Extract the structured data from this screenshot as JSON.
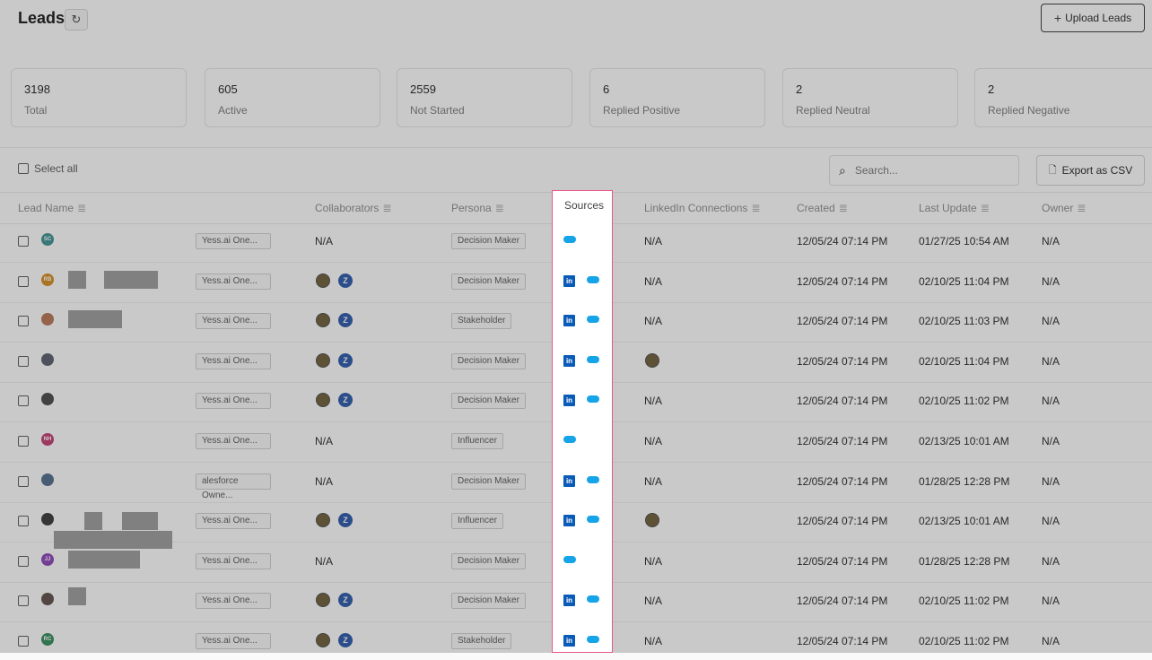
{
  "header": {
    "title": "Leads",
    "refresh_icon": "refresh-icon",
    "upload_label": "Upload Leads"
  },
  "stats": [
    {
      "num": "3198",
      "label": "Total"
    },
    {
      "num": "605",
      "label": "Active"
    },
    {
      "num": "2559",
      "label": "Not Started"
    },
    {
      "num": "6",
      "label": "Replied Positive"
    },
    {
      "num": "2",
      "label": "Replied Neutral"
    },
    {
      "num": "2",
      "label": "Replied Negative"
    }
  ],
  "toolbar": {
    "select_all": "Select all",
    "search_placeholder": "Search...",
    "export_label": "Export as CSV"
  },
  "columns": {
    "lead_name": "Lead Name",
    "collaborators": "Collaborators",
    "persona": "Persona",
    "sources": "Sources",
    "linkedin": "LinkedIn Connections",
    "created": "Created",
    "last_update": "Last Update",
    "owner": "Owner"
  },
  "rows": [
    {
      "initials": "SC",
      "avatar_color": "#3a8f8f",
      "list": "Yess.ai One...",
      "collab": "N/A",
      "persona": "Decision Maker",
      "linkedin": "N/A",
      "created": "12/05/24 07:14 PM",
      "updated": "01/27/25 10:54 AM",
      "owner": "N/A"
    },
    {
      "initials": "RB",
      "avatar_color": "#d48a1c",
      "list": "Yess.ai One...",
      "collab": "",
      "persona": "Decision Maker",
      "linkedin": "N/A",
      "created": "12/05/24 07:14 PM",
      "updated": "02/10/25 11:04 PM",
      "owner": "N/A"
    },
    {
      "initials": "",
      "avatar_color": "#b6724e",
      "list": "Yess.ai One...",
      "collab": "",
      "persona": "Stakeholder",
      "linkedin": "N/A",
      "created": "12/05/24 07:14 PM",
      "updated": "02/10/25 11:03 PM",
      "owner": "N/A"
    },
    {
      "initials": "",
      "avatar_color": "#555a66",
      "list": "Yess.ai One...",
      "collab": "",
      "persona": "Decision Maker",
      "linkedin": "",
      "created": "12/05/24 07:14 PM",
      "updated": "02/10/25 11:04 PM",
      "owner": "N/A"
    },
    {
      "initials": "",
      "avatar_color": "#444444",
      "list": "Yess.ai One...",
      "collab": "",
      "persona": "Decision Maker",
      "linkedin": "N/A",
      "created": "12/05/24 07:14 PM",
      "updated": "02/10/25 11:02 PM",
      "owner": "N/A"
    },
    {
      "initials": "NH",
      "avatar_color": "#c2366d",
      "list": "Yess.ai One...",
      "collab": "N/A",
      "persona": "Influencer",
      "linkedin": "N/A",
      "created": "12/05/24 07:14 PM",
      "updated": "02/13/25 10:01 AM",
      "owner": "N/A"
    },
    {
      "initials": "",
      "avatar_color": "#4d6a8a",
      "list": "alesforce Owne...",
      "collab": "N/A",
      "persona": "Decision Maker",
      "linkedin": "N/A",
      "created": "12/05/24 07:14 PM",
      "updated": "01/28/25 12:28 PM",
      "owner": "N/A"
    },
    {
      "initials": "",
      "avatar_color": "#333333",
      "list": "Yess.ai One...",
      "collab": "",
      "persona": "Influencer",
      "linkedin": "",
      "created": "12/05/24 07:14 PM",
      "updated": "02/13/25 10:01 AM",
      "owner": "N/A"
    },
    {
      "initials": "JJ",
      "avatar_color": "#8a3fb8",
      "list": "Yess.ai One...",
      "collab": "N/A",
      "persona": "Decision Maker",
      "linkedin": "N/A",
      "created": "12/05/24 07:14 PM",
      "updated": "01/28/25 12:28 PM",
      "owner": "N/A"
    },
    {
      "initials": "",
      "avatar_color": "#5a4a44",
      "list": "Yess.ai One...",
      "collab": "",
      "persona": "Decision Maker",
      "linkedin": "N/A",
      "created": "12/05/24 07:14 PM",
      "updated": "02/10/25 11:02 PM",
      "owner": "N/A"
    },
    {
      "initials": "RC",
      "avatar_color": "#2e8a5a",
      "list": "Yess.ai One...",
      "collab": "",
      "persona": "Stakeholder",
      "linkedin": "N/A",
      "created": "12/05/24 07:14 PM",
      "updated": "02/10/25 11:02 PM",
      "owner": "N/A"
    }
  ],
  "row_sources": [
    [
      "salesforce"
    ],
    [
      "linkedin",
      "salesforce"
    ],
    [
      "linkedin",
      "salesforce"
    ],
    [
      "linkedin",
      "salesforce"
    ],
    [
      "linkedin",
      "salesforce"
    ],
    [
      "salesforce"
    ],
    [
      "linkedin",
      "salesforce"
    ],
    [
      "linkedin",
      "salesforce"
    ],
    [
      "salesforce"
    ],
    [
      "linkedin",
      "salesforce"
    ],
    [
      "linkedin",
      "salesforce"
    ]
  ],
  "colors": {
    "highlight": "#e8568c",
    "linkedin": "#0a5bb7",
    "salesforce": "#16a4e8",
    "collab_z": "#2555a8"
  }
}
